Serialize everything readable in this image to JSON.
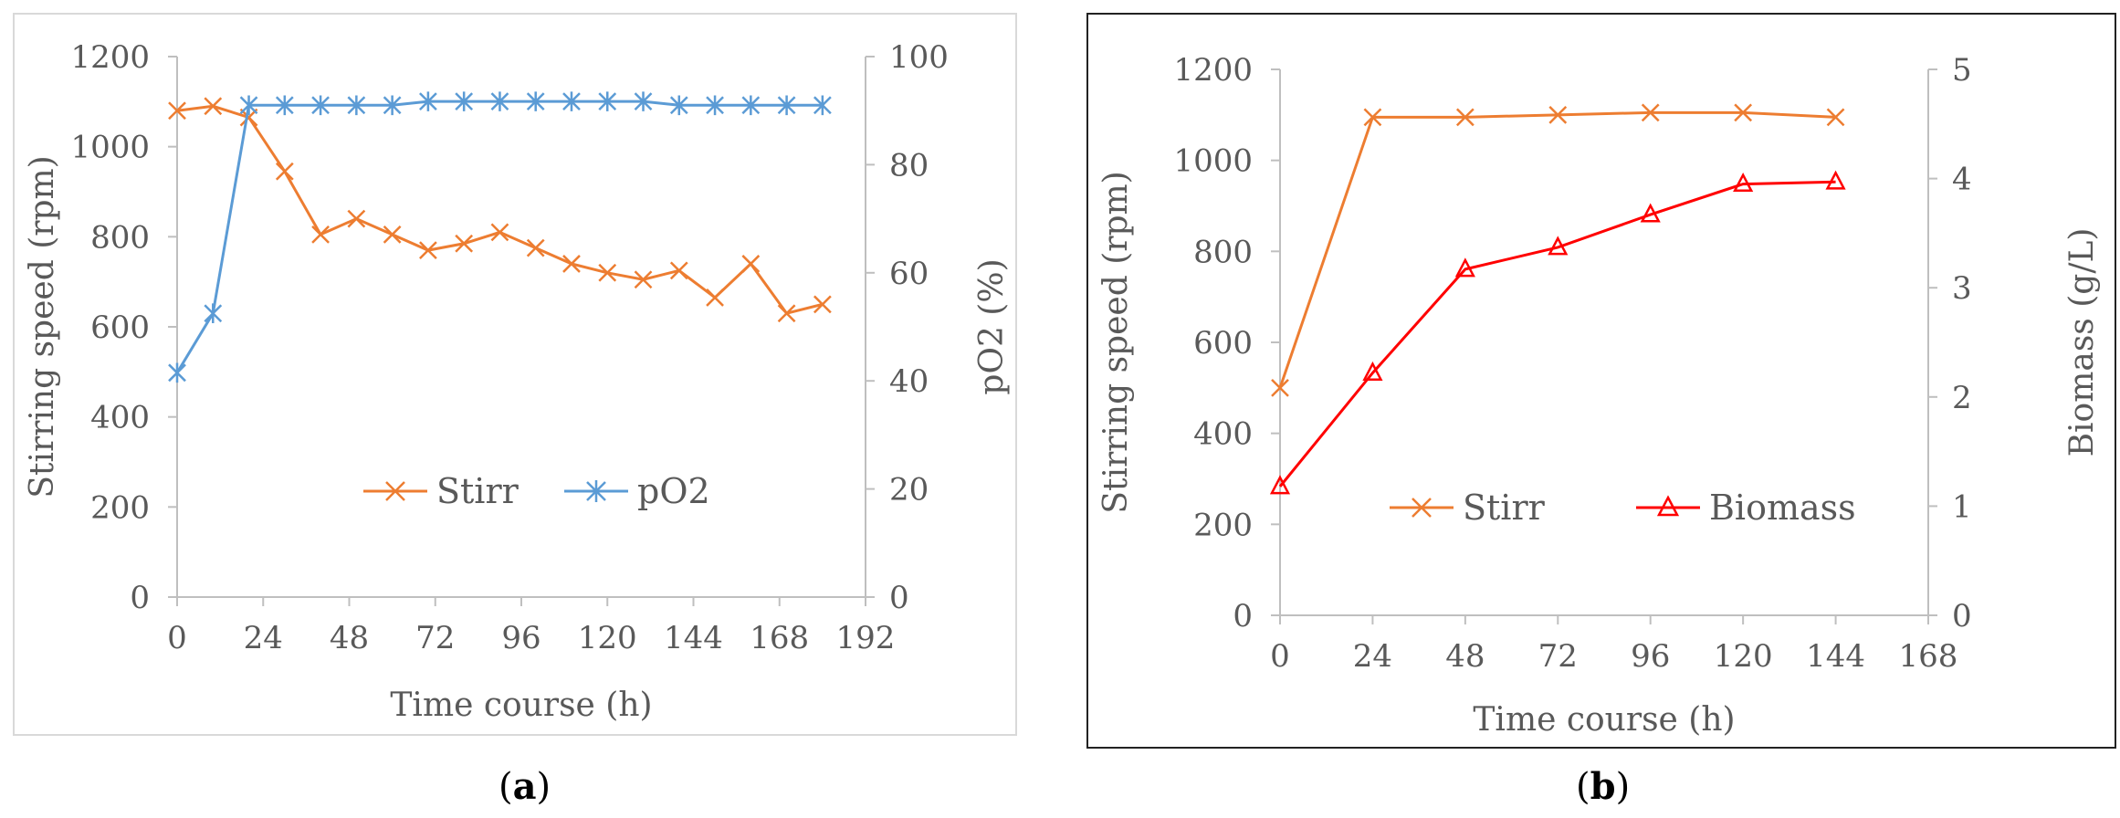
{
  "chart_data": [
    {
      "id": "a",
      "type": "line",
      "caption_letter": "a",
      "xlabel": "Time course (h)",
      "ylabel": "Stirring speed (rpm)",
      "y2label": "pO2 (%)",
      "xlim": [
        0,
        192
      ],
      "ylim": [
        0,
        1200
      ],
      "y2lim": [
        0,
        100
      ],
      "x_ticks": [
        0,
        24,
        48,
        72,
        96,
        120,
        144,
        168,
        192
      ],
      "y_ticks": [
        0,
        200,
        400,
        600,
        800,
        1000,
        1200
      ],
      "y2_ticks": [
        0,
        20,
        40,
        60,
        80,
        100
      ],
      "legend_position": "center-left",
      "series": [
        {
          "name": "Stirr",
          "axis": "left",
          "color": "#ed7d31",
          "marker": "x",
          "x": [
            0,
            10,
            20,
            30,
            40,
            50,
            60,
            70,
            80,
            90,
            100,
            110,
            120,
            130,
            140,
            150,
            160,
            170,
            180
          ],
          "values": [
            1080,
            1090,
            1065,
            945,
            805,
            840,
            805,
            770,
            785,
            810,
            775,
            740,
            720,
            705,
            725,
            665,
            740,
            630,
            650
          ]
        },
        {
          "name": "pO2",
          "axis": "right",
          "color": "#5b9bd5",
          "marker": "asterisk",
          "x": [
            0,
            10,
            20,
            30,
            40,
            50,
            60,
            70,
            80,
            90,
            100,
            110,
            120,
            130,
            140,
            150,
            160,
            170,
            180
          ],
          "values": [
            41.5,
            52.5,
            91,
            91,
            91,
            91,
            91,
            91.7,
            91.7,
            91.7,
            91.7,
            91.7,
            91.7,
            91.7,
            91,
            91,
            91,
            91,
            91
          ]
        }
      ]
    },
    {
      "id": "b",
      "type": "line",
      "caption_letter": "b",
      "xlabel": "Time course (h)",
      "ylabel": "Stirring speed (rpm)",
      "y2label": "Biomass (g/L)",
      "xlim": [
        0,
        168
      ],
      "ylim": [
        0,
        1200
      ],
      "y2lim": [
        0,
        5
      ],
      "x_ticks": [
        0,
        24,
        48,
        72,
        96,
        120,
        144,
        168
      ],
      "y_ticks": [
        0,
        200,
        400,
        600,
        800,
        1000,
        1200
      ],
      "y2_ticks": [
        0,
        1,
        2,
        3,
        4,
        5
      ],
      "legend_position": "center",
      "series": [
        {
          "name": "Stirr",
          "axis": "left",
          "color": "#ed7d31",
          "marker": "x",
          "x": [
            0,
            24,
            48,
            72,
            96,
            120,
            144
          ],
          "values": [
            500,
            1095,
            1095,
            1100,
            1105,
            1105,
            1095
          ]
        },
        {
          "name": "Biomass",
          "axis": "right",
          "color": "#ff0000",
          "marker": "triangle",
          "x": [
            0,
            24,
            48,
            72,
            96,
            120,
            144
          ],
          "values": [
            1.18,
            2.22,
            3.17,
            3.37,
            3.67,
            3.95,
            3.97
          ]
        }
      ]
    }
  ]
}
